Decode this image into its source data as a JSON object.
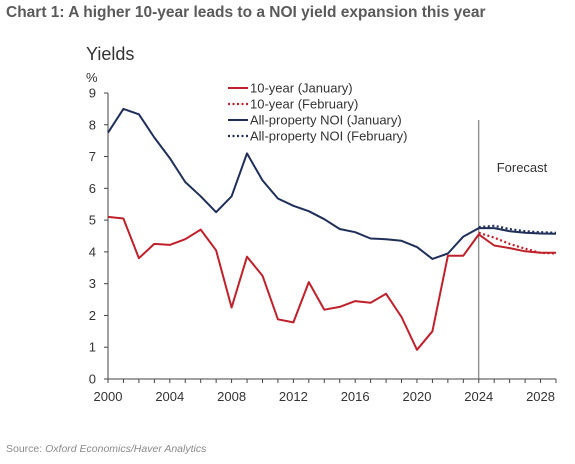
{
  "title": "Chart 1: A higher 10-year leads to a NOI yield expansion this year",
  "source_prefix": "Source: ",
  "source_text": "Oxford Economics/Haver Analytics",
  "chart_data": {
    "type": "line",
    "subtitle": "Yields",
    "unit": "%",
    "xlim": [
      2000,
      2029
    ],
    "ylim": [
      0,
      9
    ],
    "xticks": [
      2000,
      2004,
      2008,
      2012,
      2016,
      2020,
      2024,
      2028
    ],
    "yticks": [
      0,
      1,
      2,
      3,
      4,
      5,
      6,
      7,
      8,
      9
    ],
    "forecast_label": "Forecast",
    "forecast_start": 2024,
    "legend_position": "top-center",
    "series": [
      {
        "name": "10-year (January)",
        "color": "#c0202a",
        "style": "solid",
        "x": [
          2000,
          2001,
          2002,
          2003,
          2004,
          2005,
          2006,
          2007,
          2008,
          2009,
          2010,
          2011,
          2012,
          2013,
          2014,
          2015,
          2016,
          2017,
          2018,
          2019,
          2020,
          2021,
          2022,
          2023,
          2024,
          2025,
          2026,
          2027,
          2028,
          2029
        ],
        "y": [
          5.1,
          5.05,
          3.8,
          4.25,
          4.22,
          4.4,
          4.7,
          4.05,
          2.25,
          3.85,
          3.25,
          1.88,
          1.78,
          3.05,
          2.18,
          2.27,
          2.45,
          2.4,
          2.68,
          1.95,
          0.92,
          1.5,
          3.88,
          3.88,
          4.55,
          4.2,
          4.12,
          4.02,
          3.97,
          3.97
        ]
      },
      {
        "name": "10-year (February)",
        "color": "#c0202a",
        "style": "dotted",
        "x": [
          2024,
          2025,
          2026,
          2027,
          2028,
          2029
        ],
        "y": [
          4.6,
          4.45,
          4.25,
          4.1,
          3.97,
          3.95
        ]
      },
      {
        "name": "All-property NOI (January)",
        "color": "#1f2f5a",
        "style": "solid",
        "x": [
          2000,
          2001,
          2002,
          2003,
          2004,
          2005,
          2006,
          2007,
          2008,
          2009,
          2010,
          2011,
          2012,
          2013,
          2014,
          2015,
          2016,
          2017,
          2018,
          2019,
          2020,
          2021,
          2022,
          2023,
          2024,
          2025,
          2026,
          2027,
          2028,
          2029
        ],
        "y": [
          7.75,
          8.5,
          8.33,
          7.6,
          6.95,
          6.2,
          5.75,
          5.25,
          5.75,
          7.1,
          6.25,
          5.68,
          5.45,
          5.28,
          5.03,
          4.72,
          4.62,
          4.42,
          4.4,
          4.35,
          4.15,
          3.78,
          3.95,
          4.48,
          4.75,
          4.75,
          4.65,
          4.6,
          4.58,
          4.57
        ]
      },
      {
        "name": "All-property NOI (February)",
        "color": "#1f2f5a",
        "style": "dotted",
        "x": [
          2024,
          2025,
          2026,
          2027,
          2028,
          2029
        ],
        "y": [
          4.78,
          4.82,
          4.72,
          4.65,
          4.62,
          4.6
        ]
      }
    ]
  }
}
